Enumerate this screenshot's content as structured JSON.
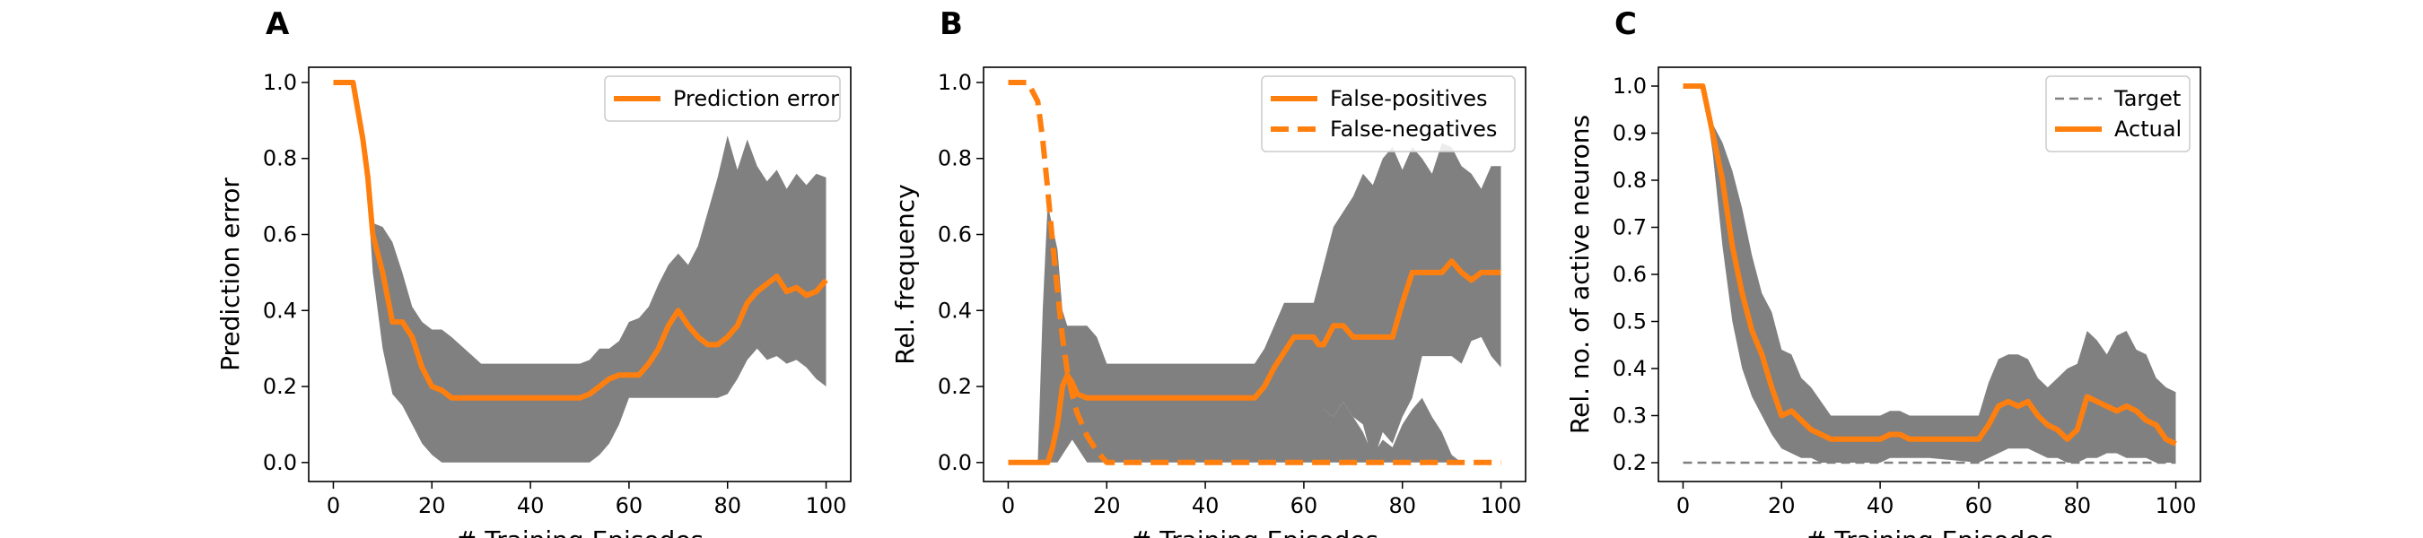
{
  "chart_data": [
    {
      "type": "line",
      "panel_letter": "A",
      "xlabel": "# Training Episodes",
      "ylabel": "Prediction error",
      "xlim": [
        -5,
        105
      ],
      "ylim": [
        -0.05,
        1.04
      ],
      "xticks": [
        0,
        20,
        40,
        60,
        80,
        100
      ],
      "xtick_labels": [
        "0",
        "20",
        "40",
        "60",
        "80",
        "100"
      ],
      "yticks": [
        0.0,
        0.2,
        0.4,
        0.6,
        0.8,
        1.0
      ],
      "ytick_labels": [
        "0.0",
        "0.2",
        "0.4",
        "0.6",
        "0.8",
        "1.0"
      ],
      "legend_position": "top-right",
      "series": [
        {
          "name": "Prediction error",
          "style": "solid",
          "color": "#ff7f0e",
          "x": [
            0,
            2,
            4,
            6,
            7,
            8,
            10,
            12,
            14,
            16,
            18,
            20,
            22,
            24,
            30,
            40,
            50,
            52,
            54,
            56,
            58,
            60,
            62,
            64,
            66,
            68,
            70,
            72,
            74,
            76,
            78,
            80,
            82,
            84,
            86,
            88,
            90,
            92,
            94,
            96,
            98,
            100
          ],
          "y": [
            1.0,
            1.0,
            1.0,
            0.85,
            0.75,
            0.6,
            0.5,
            0.37,
            0.37,
            0.33,
            0.25,
            0.2,
            0.19,
            0.17,
            0.17,
            0.17,
            0.17,
            0.18,
            0.2,
            0.22,
            0.23,
            0.23,
            0.23,
            0.26,
            0.3,
            0.36,
            0.4,
            0.36,
            0.33,
            0.31,
            0.31,
            0.33,
            0.36,
            0.42,
            0.45,
            0.47,
            0.49,
            0.45,
            0.46,
            0.44,
            0.45,
            0.48
          ]
        }
      ],
      "band": {
        "color": "#808080",
        "x": [
          0,
          2,
          4,
          6,
          7,
          8,
          10,
          12,
          14,
          16,
          18,
          20,
          22,
          24,
          30,
          40,
          50,
          52,
          54,
          56,
          58,
          60,
          62,
          64,
          66,
          68,
          70,
          72,
          74,
          76,
          78,
          80,
          82,
          84,
          86,
          88,
          90,
          92,
          94,
          96,
          98,
          100
        ],
        "upper": [
          1.0,
          1.0,
          1.0,
          0.85,
          0.78,
          0.63,
          0.62,
          0.58,
          0.5,
          0.41,
          0.37,
          0.35,
          0.35,
          0.33,
          0.26,
          0.26,
          0.26,
          0.27,
          0.3,
          0.3,
          0.32,
          0.37,
          0.38,
          0.41,
          0.47,
          0.52,
          0.55,
          0.52,
          0.57,
          0.66,
          0.75,
          0.86,
          0.77,
          0.85,
          0.78,
          0.74,
          0.77,
          0.72,
          0.76,
          0.73,
          0.76,
          0.75
        ],
        "lower": [
          1.0,
          1.0,
          1.0,
          0.85,
          0.7,
          0.5,
          0.3,
          0.18,
          0.15,
          0.1,
          0.05,
          0.02,
          0.0,
          0.0,
          0.0,
          0.0,
          0.0,
          0.0,
          0.02,
          0.05,
          0.1,
          0.17,
          0.17,
          0.17,
          0.17,
          0.17,
          0.17,
          0.17,
          0.17,
          0.17,
          0.17,
          0.18,
          0.22,
          0.27,
          0.3,
          0.27,
          0.28,
          0.26,
          0.27,
          0.25,
          0.22,
          0.2
        ]
      }
    },
    {
      "type": "line",
      "panel_letter": "B",
      "xlabel": "# Training Episodes",
      "ylabel": "Rel. frequency",
      "xlim": [
        -5,
        105
      ],
      "ylim": [
        -0.05,
        1.04
      ],
      "xticks": [
        0,
        20,
        40,
        60,
        80,
        100
      ],
      "xtick_labels": [
        "0",
        "20",
        "40",
        "60",
        "80",
        "100"
      ],
      "yticks": [
        0.0,
        0.2,
        0.4,
        0.6,
        0.8,
        1.0
      ],
      "ytick_labels": [
        "0.0",
        "0.2",
        "0.4",
        "0.6",
        "0.8",
        "1.0"
      ],
      "legend_position": "top-right",
      "series": [
        {
          "name": "False-positives",
          "style": "solid",
          "color": "#ff7f0e",
          "x": [
            0,
            4,
            6,
            8,
            9,
            10,
            11,
            12,
            13,
            14,
            16,
            18,
            20,
            30,
            40,
            50,
            52,
            54,
            56,
            58,
            60,
            62,
            63,
            64,
            66,
            68,
            70,
            72,
            74,
            76,
            78,
            80,
            82,
            84,
            86,
            88,
            90,
            92,
            94,
            96,
            98,
            100
          ],
          "y": [
            0.0,
            0.0,
            0.0,
            0.0,
            0.04,
            0.1,
            0.2,
            0.23,
            0.21,
            0.18,
            0.17,
            0.17,
            0.17,
            0.17,
            0.17,
            0.17,
            0.2,
            0.25,
            0.29,
            0.33,
            0.33,
            0.33,
            0.31,
            0.31,
            0.36,
            0.36,
            0.33,
            0.33,
            0.33,
            0.33,
            0.33,
            0.42,
            0.5,
            0.5,
            0.5,
            0.5,
            0.53,
            0.5,
            0.48,
            0.5,
            0.5,
            0.5
          ]
        },
        {
          "name": "False-negatives",
          "style": "dashed",
          "color": "#ff7f0e",
          "x": [
            0,
            4,
            6,
            7,
            8,
            9,
            10,
            11,
            12,
            13,
            14,
            16,
            18,
            20,
            22,
            30,
            40,
            50,
            60,
            70,
            80,
            90,
            100
          ],
          "y": [
            1.0,
            1.0,
            0.95,
            0.85,
            0.72,
            0.58,
            0.45,
            0.33,
            0.24,
            0.18,
            0.13,
            0.07,
            0.03,
            0.0,
            0.0,
            0.0,
            0.0,
            0.0,
            0.0,
            0.0,
            0.0,
            0.0,
            0.0
          ]
        }
      ],
      "band": {
        "color": "#808080",
        "x": [
          0,
          4,
          6,
          7,
          8,
          9,
          10,
          11,
          12,
          13,
          14,
          16,
          18,
          20,
          30,
          40,
          50,
          52,
          54,
          56,
          58,
          60,
          62,
          64,
          66,
          68,
          70,
          72,
          74,
          76,
          78,
          80,
          82,
          84,
          86,
          88,
          90,
          92,
          94,
          96,
          98,
          100
        ],
        "upper": [
          0.0,
          0.0,
          0.0,
          0.4,
          0.68,
          0.62,
          0.56,
          0.4,
          0.36,
          0.36,
          0.36,
          0.36,
          0.33,
          0.26,
          0.26,
          0.26,
          0.26,
          0.3,
          0.36,
          0.42,
          0.42,
          0.42,
          0.42,
          0.52,
          0.62,
          0.66,
          0.7,
          0.76,
          0.73,
          0.8,
          0.83,
          0.77,
          0.83,
          0.8,
          0.76,
          0.84,
          0.83,
          0.78,
          0.76,
          0.72,
          0.78,
          0.78
        ],
        "lower": [
          0.0,
          0.0,
          0.0,
          0.0,
          0.0,
          0.0,
          0.0,
          0.02,
          0.04,
          0.06,
          0.04,
          0.0,
          0.0,
          0.0,
          0.0,
          0.0,
          0.0,
          0.0,
          0.0,
          0.0,
          0.0,
          0.0,
          0.05,
          0.14,
          0.12,
          0.16,
          0.12,
          0.1,
          0.0,
          0.08,
          0.05,
          0.12,
          0.17,
          0.28,
          0.28,
          0.28,
          0.28,
          0.26,
          0.32,
          0.33,
          0.28,
          0.25
        ]
      },
      "band2": {
        "color": "#808080",
        "x": [
          60,
          61,
          62,
          64,
          66,
          68,
          70,
          72,
          74,
          76,
          78,
          80,
          82,
          84,
          86,
          88,
          90,
          92
        ],
        "upper": [
          0.0,
          0.06,
          0.12,
          0.14,
          0.12,
          0.16,
          0.12,
          0.08,
          0.02,
          0.06,
          0.04,
          0.1,
          0.14,
          0.17,
          0.12,
          0.08,
          0.02,
          0.0
        ],
        "lower": [
          0.0,
          0.0,
          0.0,
          0.0,
          0.0,
          0.0,
          0.0,
          0.0,
          0.0,
          0.0,
          0.0,
          0.0,
          0.0,
          0.0,
          0.0,
          0.0,
          0.0,
          0.0
        ]
      }
    },
    {
      "type": "line",
      "panel_letter": "C",
      "xlabel": "# Training Episodes",
      "ylabel": "Rel. no. of active neurons",
      "xlim": [
        -5,
        105
      ],
      "ylim": [
        0.16,
        1.04
      ],
      "xticks": [
        0,
        20,
        40,
        60,
        80,
        100
      ],
      "xtick_labels": [
        "0",
        "20",
        "40",
        "60",
        "80",
        "100"
      ],
      "yticks": [
        0.2,
        0.3,
        0.4,
        0.5,
        0.6,
        0.7,
        0.8,
        0.9,
        1.0
      ],
      "ytick_labels": [
        "0.2",
        "0.3",
        "0.4",
        "0.5",
        "0.6",
        "0.7",
        "0.8",
        "0.9",
        "1.0"
      ],
      "legend_position": "top-right",
      "series": [
        {
          "name": "Target",
          "style": "dashed",
          "color": "#808080",
          "x": [
            0,
            100
          ],
          "y": [
            0.2,
            0.2
          ]
        },
        {
          "name": "Actual",
          "style": "solid",
          "color": "#ff7f0e",
          "x": [
            0,
            2,
            4,
            6,
            8,
            9,
            10,
            12,
            14,
            16,
            18,
            20,
            22,
            24,
            26,
            28,
            30,
            40,
            42,
            44,
            46,
            50,
            60,
            62,
            64,
            66,
            68,
            70,
            72,
            74,
            76,
            78,
            80,
            82,
            84,
            86,
            88,
            90,
            92,
            94,
            96,
            98,
            100
          ],
          "y": [
            1.0,
            1.0,
            1.0,
            0.9,
            0.8,
            0.73,
            0.66,
            0.56,
            0.48,
            0.43,
            0.36,
            0.3,
            0.31,
            0.29,
            0.27,
            0.26,
            0.25,
            0.25,
            0.26,
            0.26,
            0.25,
            0.25,
            0.25,
            0.28,
            0.32,
            0.33,
            0.32,
            0.33,
            0.3,
            0.28,
            0.27,
            0.25,
            0.27,
            0.34,
            0.33,
            0.32,
            0.31,
            0.32,
            0.31,
            0.29,
            0.28,
            0.25,
            0.24
          ]
        }
      ],
      "band": {
        "color": "#808080",
        "x": [
          0,
          2,
          4,
          6,
          8,
          10,
          12,
          14,
          16,
          18,
          20,
          22,
          24,
          26,
          28,
          30,
          40,
          42,
          44,
          46,
          50,
          60,
          62,
          64,
          66,
          68,
          70,
          72,
          74,
          76,
          78,
          80,
          82,
          84,
          86,
          88,
          90,
          92,
          94,
          96,
          98,
          100
        ],
        "upper": [
          1.0,
          1.0,
          1.0,
          0.92,
          0.88,
          0.82,
          0.74,
          0.64,
          0.56,
          0.52,
          0.44,
          0.43,
          0.38,
          0.36,
          0.33,
          0.3,
          0.3,
          0.31,
          0.31,
          0.3,
          0.3,
          0.3,
          0.37,
          0.42,
          0.43,
          0.43,
          0.42,
          0.38,
          0.36,
          0.38,
          0.4,
          0.41,
          0.48,
          0.46,
          0.43,
          0.47,
          0.48,
          0.44,
          0.43,
          0.38,
          0.36,
          0.35
        ],
        "lower": [
          1.0,
          1.0,
          1.0,
          0.86,
          0.66,
          0.5,
          0.4,
          0.34,
          0.3,
          0.26,
          0.23,
          0.22,
          0.21,
          0.21,
          0.2,
          0.2,
          0.2,
          0.21,
          0.21,
          0.21,
          0.21,
          0.2,
          0.21,
          0.22,
          0.23,
          0.23,
          0.23,
          0.22,
          0.21,
          0.21,
          0.2,
          0.2,
          0.21,
          0.21,
          0.22,
          0.22,
          0.21,
          0.21,
          0.21,
          0.2,
          0.2,
          0.2
        ]
      }
    }
  ]
}
